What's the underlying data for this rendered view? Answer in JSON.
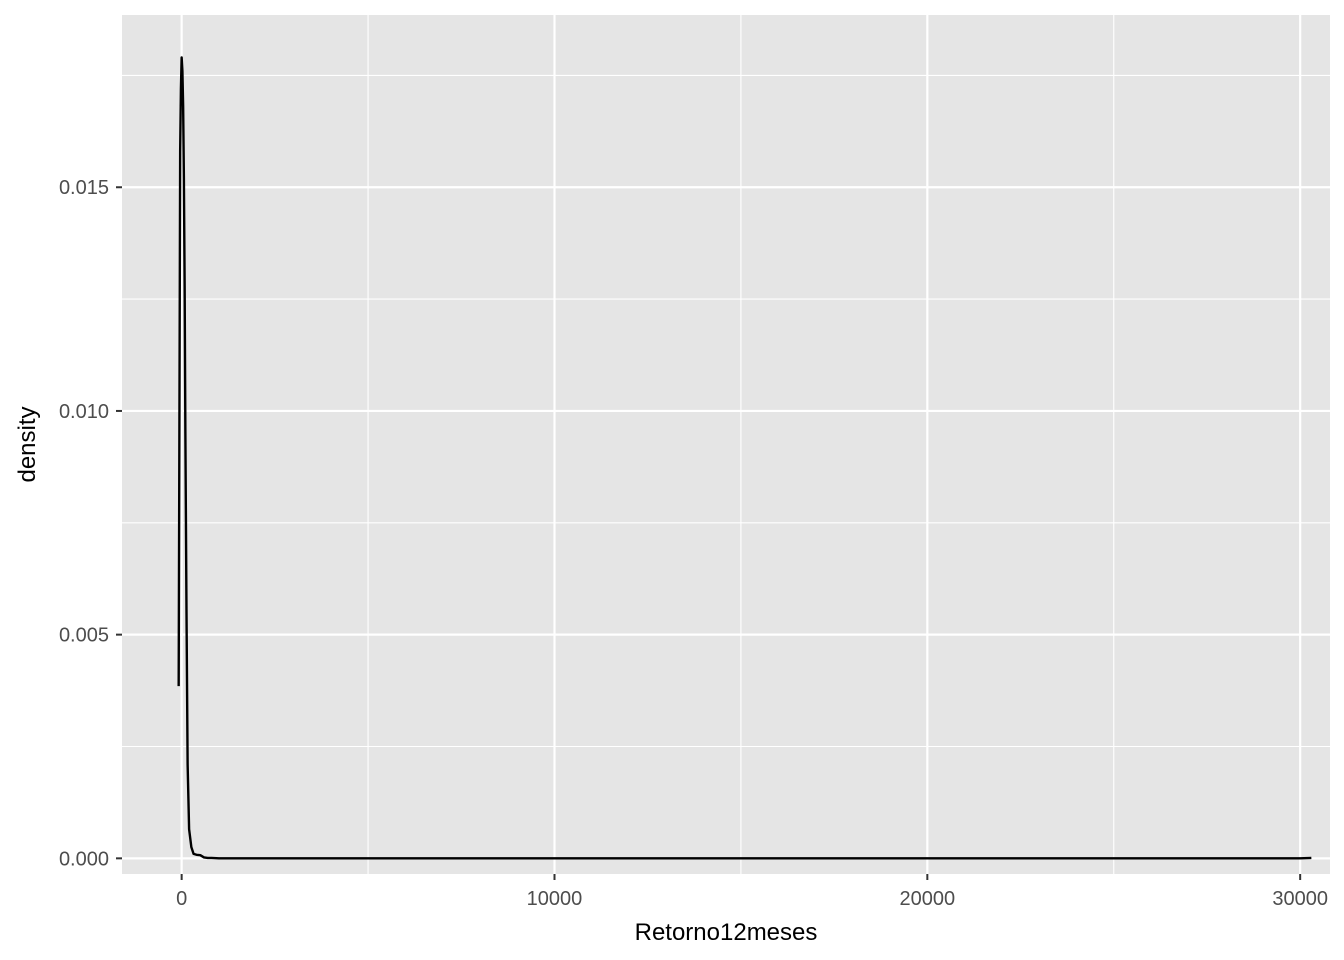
{
  "chart_data": {
    "type": "line",
    "title": "",
    "xlabel": "Retorno12meses",
    "ylabel": "density",
    "xlim": [
      -1600,
      30800
    ],
    "ylim": [
      -0.00035,
      0.01885
    ],
    "x_ticks": [
      0,
      10000,
      20000,
      30000
    ],
    "x_tick_labels": [
      "0",
      "10000",
      "20000",
      "30000"
    ],
    "x_minor_ticks": [
      5000,
      15000,
      25000
    ],
    "y_ticks": [
      0.0,
      0.005,
      0.01,
      0.015
    ],
    "y_tick_labels": [
      "0.000",
      "0.005",
      "0.010",
      "0.015"
    ],
    "y_minor_ticks": [
      0.0025,
      0.0075,
      0.0125,
      0.0175
    ],
    "grid": true,
    "legend": "none",
    "colors": {
      "panel": "#e5e5e5",
      "grid": "#ffffff",
      "line": "#000000",
      "tick": "#333333"
    },
    "series": [
      {
        "x": [
          -80,
          -60,
          -40,
          -20,
          0,
          20,
          40,
          60,
          80,
          100,
          130,
          160,
          200,
          260,
          320,
          400,
          500,
          600,
          700,
          800,
          1000,
          2000,
          5000,
          10000,
          15000,
          20000,
          25000,
          30000,
          30300
        ],
        "y": [
          0.00385,
          0.0098,
          0.0158,
          0.0172,
          0.0179,
          0.0176,
          0.0168,
          0.0152,
          0.0128,
          0.0095,
          0.0055,
          0.0021,
          0.00065,
          0.00025,
          0.0001,
          8e-05,
          7e-05,
          2e-05,
          1e-05,
          1e-05,
          0.0,
          0.0,
          0.0,
          0.0,
          0.0,
          0.0,
          0.0,
          0.0,
          1e-05
        ]
      }
    ]
  }
}
